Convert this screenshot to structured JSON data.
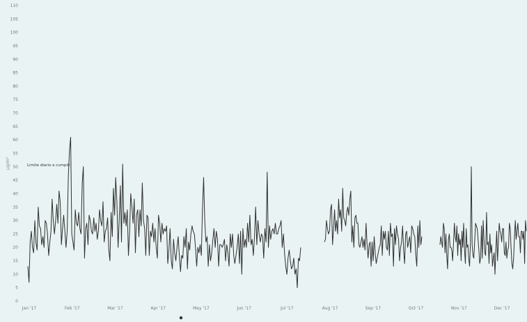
{
  "chart_data": {
    "type": "line",
    "title": "",
    "xlabel": "",
    "ylabel": "µg/m³",
    "ylim": [
      0,
      110
    ],
    "yticks": [
      0,
      5,
      10,
      15,
      20,
      25,
      30,
      35,
      40,
      45,
      50,
      55,
      60,
      65,
      70,
      75,
      80,
      85,
      90,
      95,
      100,
      105,
      110
    ],
    "xticks": [
      "Jan '17",
      "Feb '17",
      "Mar '17",
      "Apr '17",
      "May '17",
      "Jun '17",
      "Jul '17",
      "Aug '17",
      "Sep '17",
      "Oct '17",
      "Nov '17",
      "Dec '17"
    ],
    "grid": false,
    "legend_position": "bottom",
    "annotation": {
      "label": "Limite diario a cumplir",
      "value": 50
    },
    "series": [
      {
        "values": [
          13,
          7,
          22,
          26,
          20,
          18,
          30,
          22,
          19,
          35,
          28,
          27,
          21,
          24,
          20,
          30,
          29,
          25,
          17,
          22,
          26,
          38,
          30,
          25,
          30,
          36,
          29,
          41,
          37,
          21,
          27,
          32,
          26,
          20,
          26,
          46,
          56,
          61,
          25,
          22,
          19,
          34,
          29,
          28,
          33,
          27,
          25,
          44,
          50,
          16,
          27,
          29,
          21,
          32,
          30,
          26,
          25,
          31,
          26,
          29,
          23,
          26,
          34,
          30,
          28,
          37,
          22,
          26,
          27,
          31,
          19,
          15,
          33,
          24,
          42,
          32,
          46,
          37,
          20,
          30,
          43,
          22,
          51,
          29,
          33,
          28,
          34,
          17,
          26,
          40,
          35,
          29,
          38,
          18,
          32,
          34,
          24,
          34,
          28,
          44,
          30,
          27,
          17,
          32,
          31,
          17,
          26,
          24,
          29,
          22,
          27,
          20,
          16,
          32,
          29,
          22,
          29,
          25,
          27,
          26,
          28,
          14,
          19,
          27,
          15,
          12,
          23,
          18,
          15,
          20,
          24,
          17,
          11,
          17,
          16,
          24,
          20,
          27,
          12,
          22,
          19,
          25,
          28,
          26,
          25,
          20,
          13,
          20,
          18,
          21,
          17,
          34,
          46,
          30,
          22,
          24,
          13,
          21,
          15,
          18,
          23,
          27,
          20,
          26,
          23,
          13,
          21,
          21,
          20,
          21,
          23,
          15,
          21,
          18,
          13,
          25,
          20,
          25,
          17,
          14,
          17,
          20,
          25,
          14,
          26,
          10,
          27,
          20,
          23,
          20,
          29,
          22,
          32,
          21,
          23,
          17,
          24,
          35,
          21,
          30,
          25,
          22,
          25,
          24,
          16,
          27,
          22,
          48,
          20,
          28,
          23,
          26,
          27,
          25,
          29,
          25,
          25,
          27,
          28,
          30,
          20,
          25,
          18,
          13,
          10,
          16,
          19,
          15,
          12,
          13,
          16,
          10,
          12,
          5,
          16,
          15,
          20
        ]
      },
      {
        "values": [
          22,
          23,
          30,
          27,
          25,
          26,
          34,
          36,
          21,
          27,
          34,
          26,
          30,
          25,
          38,
          31,
          34,
          26,
          42,
          31,
          30,
          28,
          33,
          35,
          32,
          38,
          41,
          22,
          28,
          20,
          31,
          32,
          29,
          29,
          21,
          20,
          22,
          24,
          20,
          23,
          19,
          29,
          21,
          16,
          21,
          22,
          13,
          22,
          15,
          24,
          18,
          14,
          16,
          18,
          20,
          21,
          28,
          17,
          26,
          23,
          26,
          20,
          19,
          26,
          17,
          29,
          24,
          25,
          13,
          27,
          21,
          28,
          25,
          23,
          15,
          20,
          22,
          28,
          19,
          14,
          25,
          26,
          20,
          22,
          24,
          18,
          28,
          27,
          25,
          24,
          17,
          13,
          28,
          20,
          30,
          21,
          24
        ]
      },
      {
        "values": [
          21,
          24,
          22,
          20,
          29,
          27,
          18,
          25,
          17,
          12,
          23,
          25,
          20,
          20,
          19,
          15,
          22,
          29,
          24,
          22,
          28,
          17,
          25,
          21,
          23,
          15,
          26,
          20,
          29,
          19,
          14,
          27,
          20,
          21,
          16,
          13,
          22,
          50,
          21,
          17,
          16,
          22,
          29,
          28,
          27,
          23,
          19,
          14,
          16,
          28,
          16,
          30,
          23,
          18,
          17,
          33,
          21,
          22,
          14,
          25,
          18,
          21,
          13,
          16,
          18,
          10,
          19,
          26,
          15,
          22,
          29,
          26,
          25,
          22,
          27,
          27,
          18,
          17,
          22,
          16,
          19,
          20,
          29,
          27,
          20,
          14,
          12,
          16,
          24,
          30,
          23,
          26,
          29,
          24,
          24,
          18,
          26,
          26,
          23,
          26,
          14,
          30,
          26
        ]
      }
    ],
    "legend": {}
  }
}
